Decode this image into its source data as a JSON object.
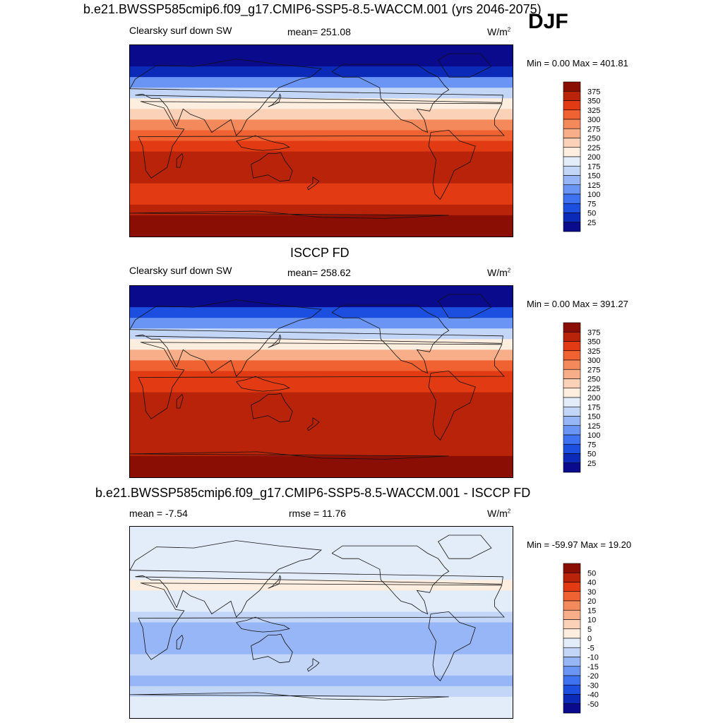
{
  "header": {
    "case_title": "b.e21.BWSSP585cmip6.f09_g17.CMIP6-SSP5-8.5-WACCM.001 (yrs 2046-2075)",
    "season": "DJF"
  },
  "panels": [
    {
      "id": "model",
      "dataset_title": "",
      "variable": "Clearsky surf down SW",
      "stat": "mean= 251.08",
      "units": "W/m",
      "units_sup": "2",
      "minmax": "Min =   0.00 Max = 401.81"
    },
    {
      "id": "obs",
      "dataset_title": "ISCCP FD",
      "variable": "Clearsky surf down SW",
      "stat": "mean= 258.62",
      "units": "W/m",
      "units_sup": "2",
      "minmax": "Min =   0.00 Max = 391.27"
    },
    {
      "id": "diff",
      "dataset_title": "b.e21.BWSSP585cmip6.f09_g17.CMIP6-SSP5-8.5-WACCM.001 - ISCCP FD",
      "variable": "mean =  -7.54",
      "stat": "rmse =  11.76",
      "units": "W/m",
      "units_sup": "2",
      "minmax": "Min = -59.97 Max =  19.20"
    }
  ],
  "chart_data": [
    {
      "type": "heatmap",
      "title": "Clearsky surf down SW",
      "stat": "mean= 251.08",
      "units": "W/m2",
      "colorbar_levels": [
        25,
        50,
        75,
        100,
        125,
        150,
        175,
        200,
        225,
        250,
        275,
        300,
        325,
        350,
        375
      ],
      "colorbar_colors": [
        "#0a0a8c",
        "#0b2ab8",
        "#1c4fe0",
        "#3f72f0",
        "#6a95f5",
        "#97b6f7",
        "#c3d6f8",
        "#e3ecf9",
        "#fdeedf",
        "#fbd2b8",
        "#f8ae88",
        "#f48a5c",
        "#f06232",
        "#e23a12",
        "#b8230a",
        "#8b0e04"
      ],
      "zonal_profile_note": "",
      "lat_rows": [
        {
          "lat": 85,
          "value": 5
        },
        {
          "lat": 75,
          "value": 15
        },
        {
          "lat": 65,
          "value": 45
        },
        {
          "lat": 55,
          "value": 100
        },
        {
          "lat": 45,
          "value": 150
        },
        {
          "lat": 35,
          "value": 205
        },
        {
          "lat": 25,
          "value": 245
        },
        {
          "lat": 15,
          "value": 290
        },
        {
          "lat": 5,
          "value": 320
        },
        {
          "lat": -5,
          "value": 340
        },
        {
          "lat": -15,
          "value": 352
        },
        {
          "lat": -25,
          "value": 360
        },
        {
          "lat": -35,
          "value": 355
        },
        {
          "lat": -45,
          "value": 345
        },
        {
          "lat": -55,
          "value": 345
        },
        {
          "lat": -65,
          "value": 355
        },
        {
          "lat": -75,
          "value": 380
        },
        {
          "lat": -85,
          "value": 390
        }
      ],
      "min": 0.0,
      "max": 401.81
    },
    {
      "type": "heatmap",
      "title": "Clearsky surf down SW",
      "stat": "mean= 258.62",
      "units": "W/m2",
      "colorbar_levels": [
        25,
        50,
        75,
        100,
        125,
        150,
        175,
        200,
        225,
        250,
        275,
        300,
        325,
        350,
        375
      ],
      "colorbar_colors": [
        "#0a0a8c",
        "#0b2ab8",
        "#1c4fe0",
        "#3f72f0",
        "#6a95f5",
        "#97b6f7",
        "#c3d6f8",
        "#e3ecf9",
        "#fdeedf",
        "#fbd2b8",
        "#f8ae88",
        "#f48a5c",
        "#f06232",
        "#e23a12",
        "#b8230a",
        "#8b0e04"
      ],
      "lat_rows": [
        {
          "lat": 85,
          "value": 5
        },
        {
          "lat": 75,
          "value": 20
        },
        {
          "lat": 65,
          "value": 60
        },
        {
          "lat": 55,
          "value": 110
        },
        {
          "lat": 45,
          "value": 160
        },
        {
          "lat": 35,
          "value": 215
        },
        {
          "lat": 25,
          "value": 260
        },
        {
          "lat": 15,
          "value": 300
        },
        {
          "lat": 5,
          "value": 330
        },
        {
          "lat": -5,
          "value": 345
        },
        {
          "lat": -15,
          "value": 355
        },
        {
          "lat": -25,
          "value": 362
        },
        {
          "lat": -35,
          "value": 362
        },
        {
          "lat": -45,
          "value": 355
        },
        {
          "lat": -55,
          "value": 350
        },
        {
          "lat": -65,
          "value": 360
        },
        {
          "lat": -75,
          "value": 380
        },
        {
          "lat": -85,
          "value": 385
        }
      ],
      "min": 0.0,
      "max": 391.27
    },
    {
      "type": "heatmap",
      "title": "b.e21.BWSSP585cmip6.f09_g17.CMIP6-SSP5-8.5-WACCM.001 - ISCCP FD",
      "stat": "mean =  -7.54, rmse =  11.76",
      "units": "W/m2",
      "colorbar_levels": [
        -50,
        -40,
        -30,
        -20,
        -15,
        -10,
        -5,
        0,
        5,
        10,
        15,
        20,
        30,
        40,
        50
      ],
      "colorbar_colors": [
        "#0a0a8c",
        "#0b2ab8",
        "#1c4fe0",
        "#3f72f0",
        "#6a95f5",
        "#97b6f7",
        "#c3d6f8",
        "#e3ecf9",
        "#fdeedf",
        "#fbd2b8",
        "#f8ae88",
        "#f48a5c",
        "#f06232",
        "#e23a12",
        "#b8230a",
        "#8b0e04"
      ],
      "lat_rows": [
        {
          "lat": 85,
          "value": -2
        },
        {
          "lat": 75,
          "value": -3
        },
        {
          "lat": 65,
          "value": -4
        },
        {
          "lat": 55,
          "value": -3
        },
        {
          "lat": 45,
          "value": -2
        },
        {
          "lat": 35,
          "value": 2
        },
        {
          "lat": 25,
          "value": -3
        },
        {
          "lat": 15,
          "value": -4
        },
        {
          "lat": 5,
          "value": -6
        },
        {
          "lat": -5,
          "value": -12
        },
        {
          "lat": -15,
          "value": -14
        },
        {
          "lat": -25,
          "value": -12
        },
        {
          "lat": -35,
          "value": -8
        },
        {
          "lat": -45,
          "value": -10
        },
        {
          "lat": -55,
          "value": -12
        },
        {
          "lat": -65,
          "value": -8
        },
        {
          "lat": -75,
          "value": -4
        },
        {
          "lat": -85,
          "value": -3
        }
      ],
      "min": -59.97,
      "max": 19.2
    }
  ]
}
